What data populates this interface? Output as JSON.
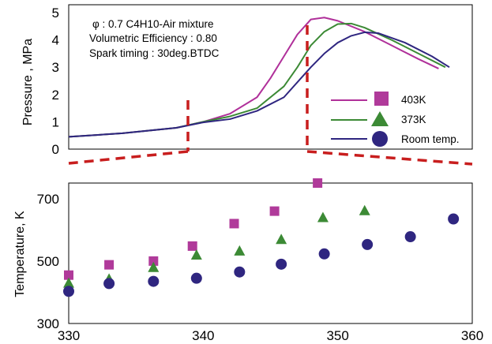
{
  "chart_data": [
    {
      "type": "line",
      "ylabel": "Pressure , MPa",
      "ylim": [
        0,
        5
      ],
      "yticks": [
        "0",
        "1",
        "2",
        "3",
        "4",
        "5"
      ],
      "annotation": [
        "φ :  0.7 C4H10-Air mixture",
        "Volumetric Efficiency : 0.80",
        "Spark timing : 30deg.BTDC"
      ],
      "legend_position": "right",
      "series": [
        {
          "name": "403K",
          "color": "#b0309a",
          "points": [
            [
              330,
              0.45
            ],
            [
              334,
              0.58
            ],
            [
              338,
              0.78
            ],
            [
              340,
              1.0
            ],
            [
              342,
              1.3
            ],
            [
              344,
              1.9
            ],
            [
              345,
              2.6
            ],
            [
              346,
              3.4
            ],
            [
              347,
              4.2
            ],
            [
              348,
              4.75
            ],
            [
              349,
              4.82
            ],
            [
              350,
              4.7
            ],
            [
              352,
              4.3
            ],
            [
              354,
              3.8
            ],
            [
              356,
              3.3
            ],
            [
              357.5,
              2.95
            ]
          ]
        },
        {
          "name": "373K",
          "color": "#3c8a35",
          "points": [
            [
              330,
              0.45
            ],
            [
              334,
              0.58
            ],
            [
              338,
              0.78
            ],
            [
              340,
              1.0
            ],
            [
              342,
              1.2
            ],
            [
              344,
              1.5
            ],
            [
              346,
              2.3
            ],
            [
              347,
              3.0
            ],
            [
              348,
              3.8
            ],
            [
              349,
              4.3
            ],
            [
              350,
              4.58
            ],
            [
              351,
              4.6
            ],
            [
              352,
              4.45
            ],
            [
              354,
              4.0
            ],
            [
              356,
              3.5
            ],
            [
              358,
              3.0
            ]
          ]
        },
        {
          "name": "Room temp.",
          "color": "#2f2680",
          "points": [
            [
              330,
              0.45
            ],
            [
              334,
              0.58
            ],
            [
              338,
              0.78
            ],
            [
              340,
              0.98
            ],
            [
              342,
              1.1
            ],
            [
              344,
              1.4
            ],
            [
              346,
              1.9
            ],
            [
              348,
              3.0
            ],
            [
              349,
              3.5
            ],
            [
              350,
              3.9
            ],
            [
              351,
              4.15
            ],
            [
              352,
              4.28
            ],
            [
              353,
              4.25
            ],
            [
              355,
              3.9
            ],
            [
              357,
              3.4
            ],
            [
              358.3,
              3.0
            ]
          ]
        }
      ]
    },
    {
      "type": "scatter",
      "xlabel": "",
      "ylabel": "Temperature, K",
      "xlim": [
        330,
        360
      ],
      "ylim": [
        300,
        750
      ],
      "xticks": [
        "330",
        "340",
        "350",
        "360"
      ],
      "yticks": [
        "300",
        "500",
        "700"
      ],
      "series": [
        {
          "name": "403K",
          "marker": "square",
          "color": "#b03a9a",
          "x": [
            330,
            333,
            336.3,
            339.2,
            342.3,
            345.3,
            348.5
          ],
          "y": [
            455,
            488,
            500,
            548,
            620,
            660,
            750
          ]
        },
        {
          "name": "373K",
          "marker": "triangle",
          "color": "#3c8a35",
          "x": [
            330,
            333,
            336.3,
            339.5,
            342.7,
            345.8,
            348.9,
            352
          ],
          "y": [
            430,
            443,
            480,
            520,
            533,
            570,
            640,
            662
          ]
        },
        {
          "name": "Room temp.",
          "marker": "circle",
          "color": "#2f2680",
          "x": [
            330,
            333,
            336.3,
            339.5,
            342.7,
            345.8,
            349,
            352.2,
            355.4,
            358.6
          ],
          "y": [
            403,
            428,
            435,
            445,
            465,
            490,
            523,
            553,
            578,
            635
          ]
        }
      ]
    }
  ]
}
